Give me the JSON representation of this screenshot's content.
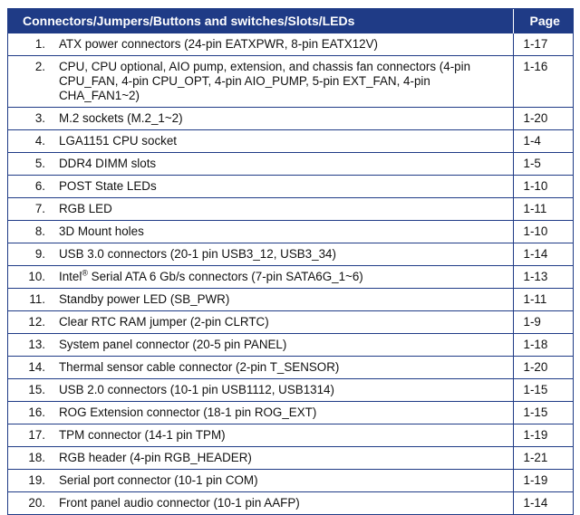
{
  "table": {
    "header": {
      "description": "Connectors/Jumpers/Buttons and switches/Slots/LEDs",
      "page": "Page"
    },
    "rows": [
      {
        "num": "1.",
        "text": "ATX power connectors (24-pin EATXPWR, 8-pin EATX12V)",
        "page": "1-17"
      },
      {
        "num": "2.",
        "text": "CPU, CPU optional, AIO pump, extension, and chassis fan connectors (4-pin CPU_FAN, 4-pin CPU_OPT, 4-pin AIO_PUMP, 5-pin EXT_FAN, 4-pin CHA_FAN1~2)",
        "page": "1-16"
      },
      {
        "num": "3.",
        "text": "M.2 sockets (M.2_1~2)",
        "page": "1-20"
      },
      {
        "num": "4.",
        "text": "LGA1151 CPU socket",
        "page": "1-4"
      },
      {
        "num": "5.",
        "text": "DDR4 DIMM slots",
        "page": "1-5"
      },
      {
        "num": "6.",
        "text": "POST State LEDs",
        "page": "1-10"
      },
      {
        "num": "7.",
        "text": "RGB LED",
        "page": "1-11"
      },
      {
        "num": "8.",
        "text": "3D Mount holes",
        "page": "1-10"
      },
      {
        "num": "9.",
        "text": "USB 3.0 connectors (20-1 pin USB3_12, USB3_34)",
        "page": "1-14"
      },
      {
        "num": "10.",
        "text": "Intel",
        "sup": "®",
        "text_after": " Serial ATA 6 Gb/s connectors (7-pin SATA6G_1~6)",
        "page": "1-13"
      },
      {
        "num": "11.",
        "text": "Standby power LED (SB_PWR)",
        "page": "1-11"
      },
      {
        "num": "12.",
        "text": "Clear RTC RAM jumper (2-pin CLRTC)",
        "page": "1-9"
      },
      {
        "num": "13.",
        "text": "System panel connector (20-5 pin PANEL)",
        "page": "1-18"
      },
      {
        "num": "14.",
        "text": "Thermal sensor cable connector (2-pin T_SENSOR)",
        "page": "1-20"
      },
      {
        "num": "15.",
        "text": "USB 2.0 connectors (10-1 pin USB1112, USB1314)",
        "page": "1-15"
      },
      {
        "num": "16.",
        "text": "ROG Extension connector (18-1 pin ROG_EXT)",
        "page": "1-15"
      },
      {
        "num": "17.",
        "text": "TPM connector (14-1 pin TPM)",
        "page": "1-19"
      },
      {
        "num": "18.",
        "text": "RGB header (4-pin RGB_HEADER)",
        "page": "1-21"
      },
      {
        "num": "19.",
        "text": "Serial port connector (10-1 pin COM)",
        "page": "1-19"
      },
      {
        "num": "20.",
        "text": "Front panel audio connector (10-1 pin AAFP)",
        "page": "1-14"
      }
    ]
  },
  "colors": {
    "header_bg": "#1f3b86",
    "header_text": "#ffffff",
    "border": "#1f3b86",
    "body_text": "#111111"
  }
}
